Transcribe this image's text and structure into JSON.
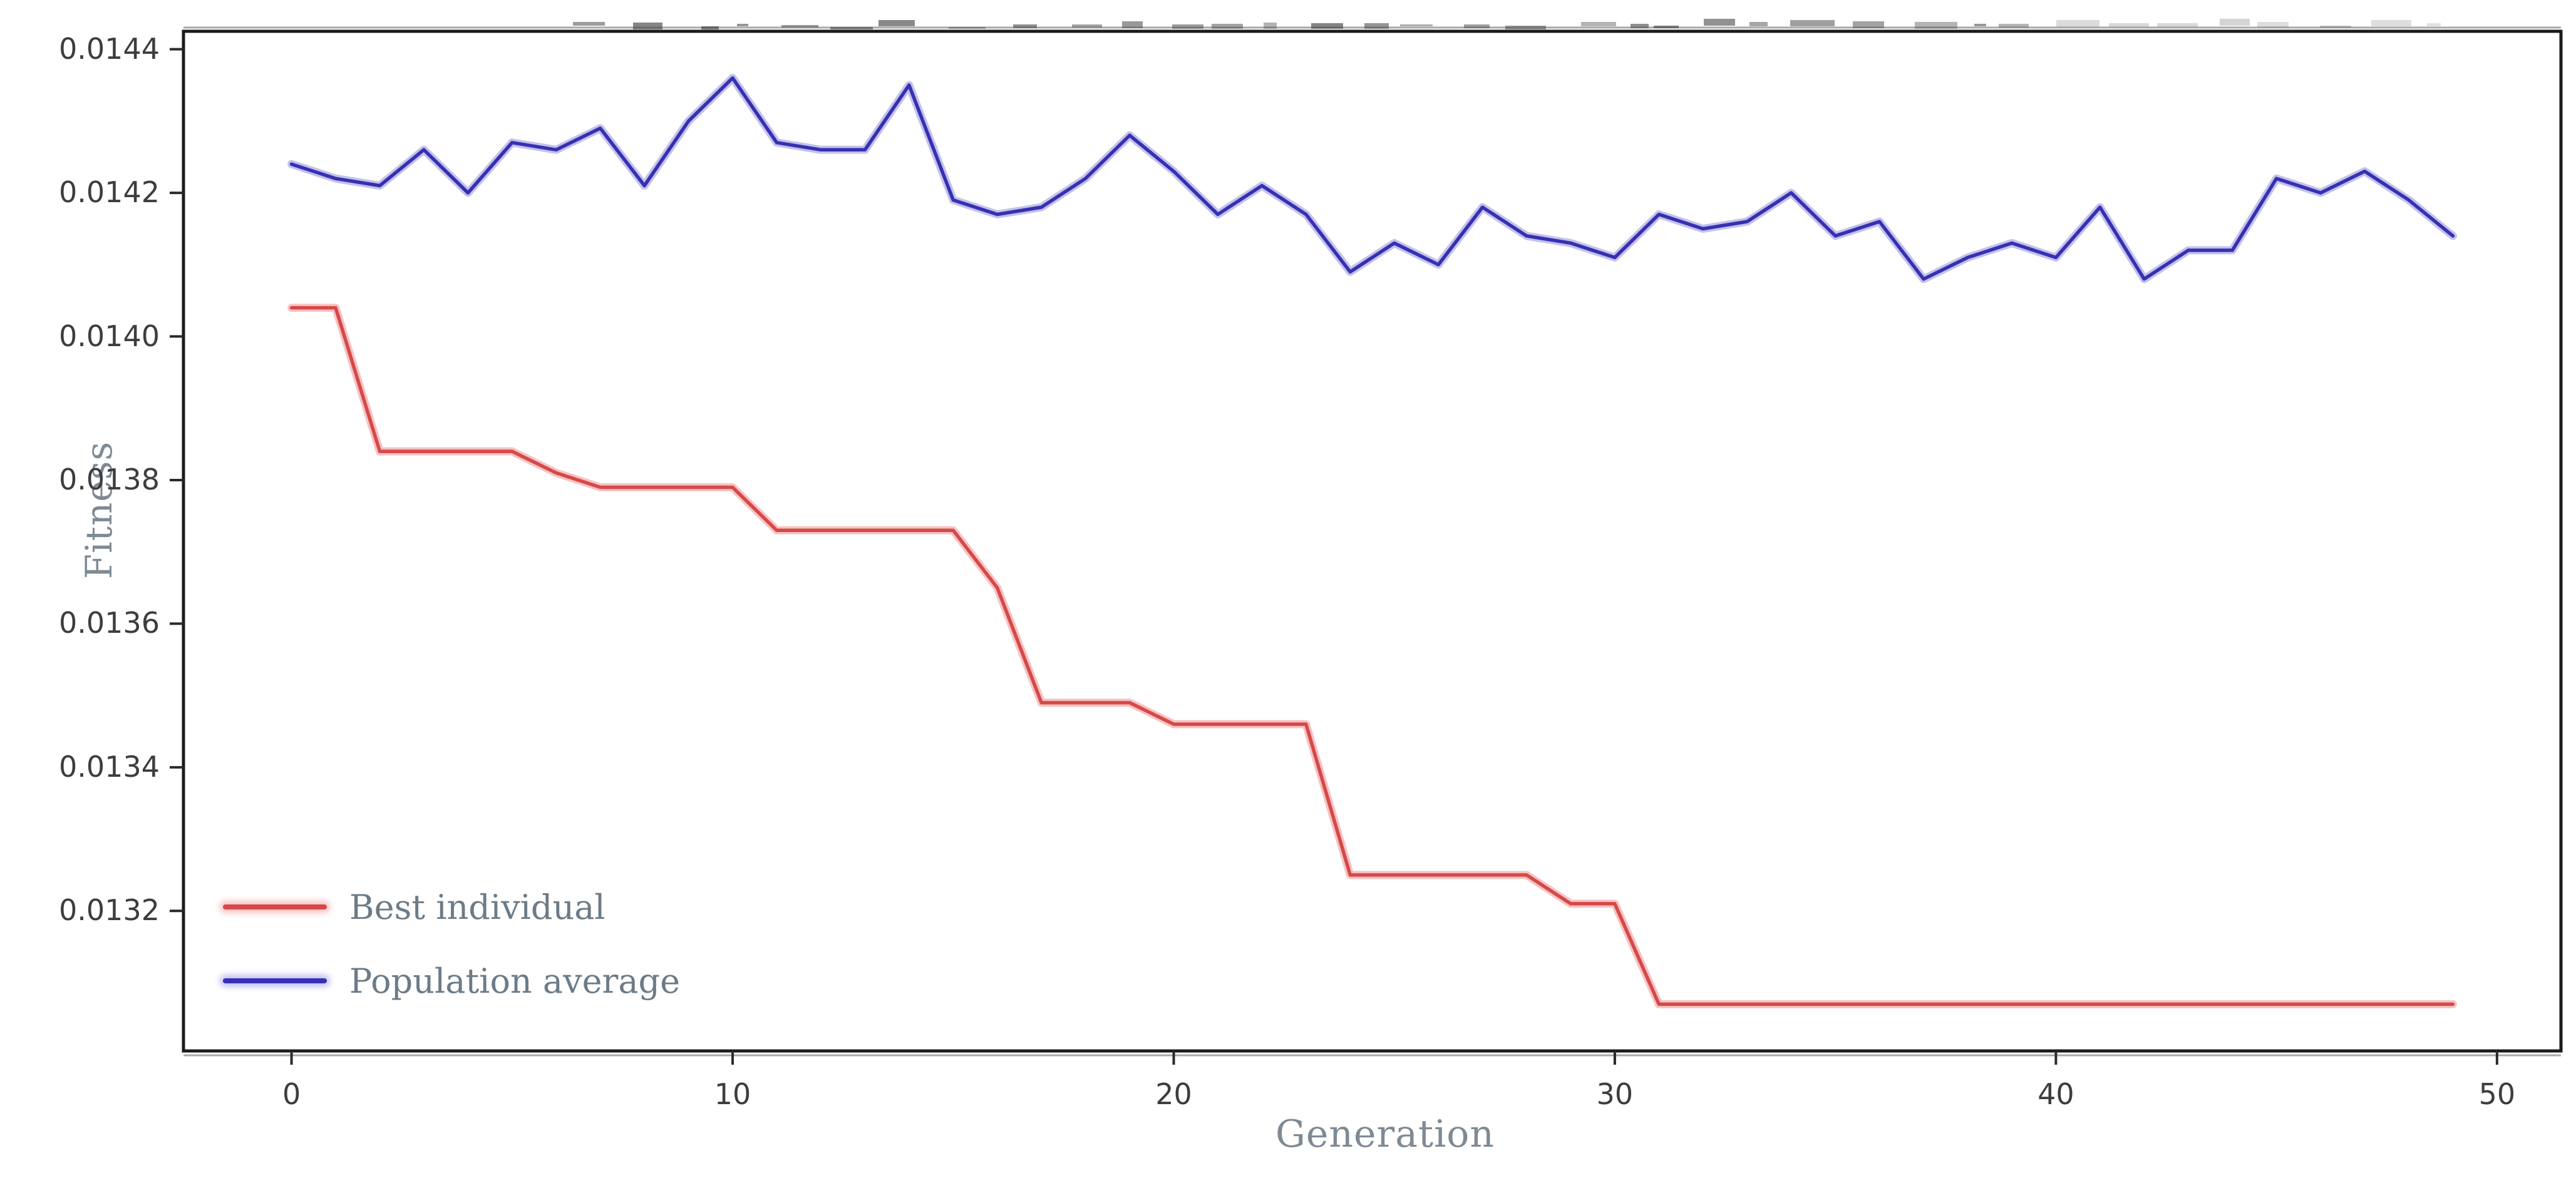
{
  "figure": {
    "cropped_title_visible": true
  },
  "chart_data": {
    "type": "line",
    "title": "",
    "xlabel": "Generation",
    "ylabel": "Fitness",
    "x": [
      0,
      1,
      2,
      3,
      4,
      5,
      6,
      7,
      8,
      9,
      10,
      11,
      12,
      13,
      14,
      15,
      16,
      17,
      18,
      19,
      20,
      21,
      22,
      23,
      24,
      25,
      26,
      27,
      28,
      29,
      30,
      31,
      32,
      33,
      34,
      35,
      36,
      37,
      38,
      39,
      40,
      41,
      42,
      43,
      44,
      45,
      46,
      47,
      48,
      49
    ],
    "series": [
      {
        "name": "Best individual",
        "color": "#d64949",
        "values": [
          0.01404,
          0.01404,
          0.01384,
          0.01384,
          0.01384,
          0.01384,
          0.01381,
          0.01379,
          0.01379,
          0.01379,
          0.01379,
          0.01373,
          0.01373,
          0.01373,
          0.01373,
          0.01373,
          0.01365,
          0.01349,
          0.01349,
          0.01349,
          0.01346,
          0.01346,
          0.01346,
          0.01346,
          0.01325,
          0.01325,
          0.01325,
          0.01325,
          0.01325,
          0.01321,
          0.01321,
          0.01307,
          0.01307,
          0.01307,
          0.01307,
          0.01307,
          0.01307,
          0.01307,
          0.01307,
          0.01307,
          0.01307,
          0.01307,
          0.01307,
          0.01307,
          0.01307,
          0.01307,
          0.01307,
          0.01307,
          0.01307,
          0.01307
        ]
      },
      {
        "name": "Population average",
        "color": "#3730b3",
        "values": [
          0.01424,
          0.01422,
          0.01421,
          0.01426,
          0.0142,
          0.01427,
          0.01426,
          0.01429,
          0.01421,
          0.0143,
          0.01436,
          0.01427,
          0.01426,
          0.01426,
          0.01435,
          0.01419,
          0.01417,
          0.01418,
          0.01422,
          0.01428,
          0.01423,
          0.01417,
          0.01421,
          0.01417,
          0.01409,
          0.01413,
          0.0141,
          0.01418,
          0.01414,
          0.01413,
          0.01411,
          0.01417,
          0.01415,
          0.01416,
          0.0142,
          0.01414,
          0.01416,
          0.01408,
          0.01411,
          0.01413,
          0.01411,
          0.01418,
          0.01408,
          0.01412,
          0.01412,
          0.01422,
          0.0142,
          0.01423,
          0.01419,
          0.01414
        ]
      }
    ],
    "xticks": [
      0,
      10,
      20,
      30,
      40,
      50
    ],
    "xtick_labels": [
      "0",
      "10",
      "20",
      "30",
      "40",
      "50"
    ],
    "yticks": [
      0.0132,
      0.0134,
      0.0136,
      0.0138,
      0.014,
      0.0142,
      0.0144
    ],
    "ytick_labels": [
      "0.0132",
      "0.0134",
      "0.0136",
      "0.0138",
      "0.0140",
      "0.0142",
      "0.0144"
    ],
    "xlim": [
      -2.45,
      51.45
    ],
    "ylim": [
      0.013005,
      0.014425
    ],
    "grid": false,
    "legend_position": "lower left"
  },
  "colors": {
    "spine": "#1b1b1b",
    "tick": "#2a2a2a",
    "tick_label": "#3d3d3d",
    "axis_title": "#7e8a94",
    "legend_text": "#6d7b87",
    "best_line": "#d64949",
    "best_halo": "#f4b9b9",
    "avg_line": "#3730b3",
    "avg_halo": "#b9b7e6"
  }
}
